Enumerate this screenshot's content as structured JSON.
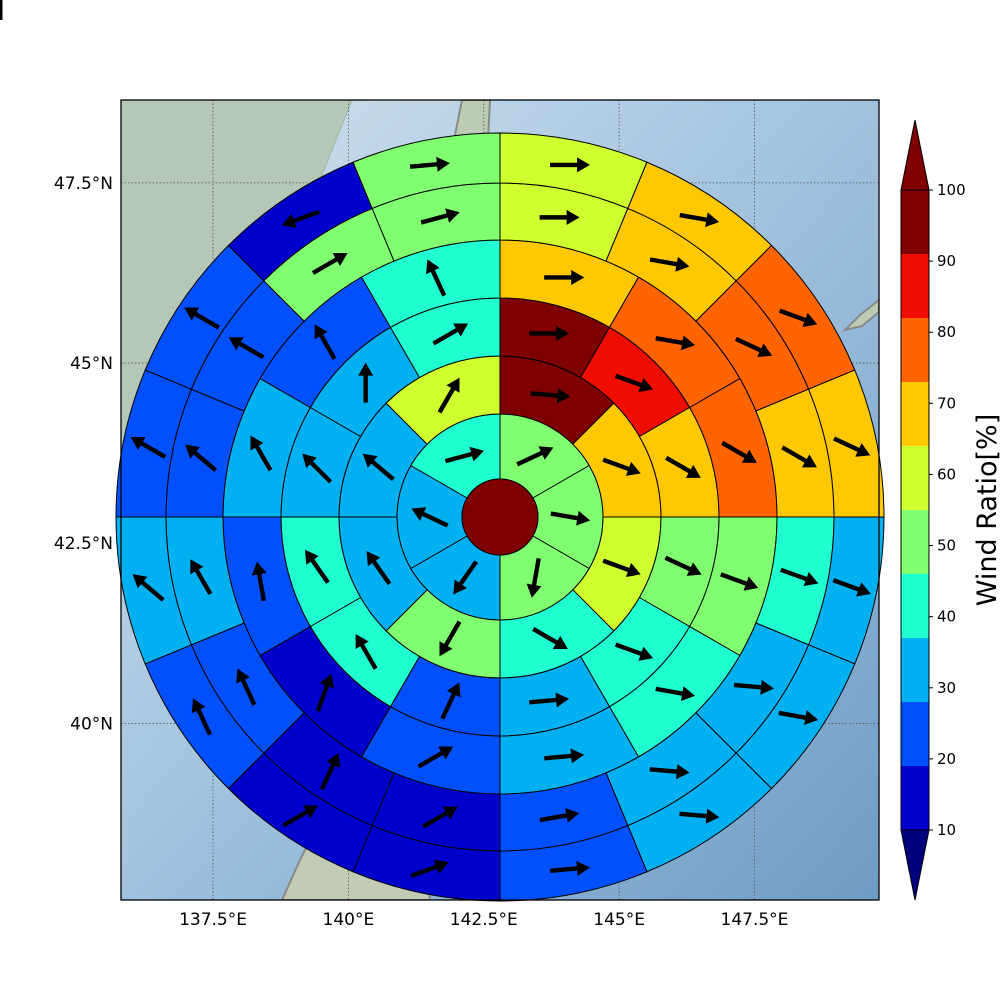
{
  "chart_data": {
    "type": "polar-sector-map",
    "colorbar": {
      "label": "Wind Ratio[%]",
      "ticks": [
        "10",
        "20",
        "30",
        "40",
        "50",
        "60",
        "70",
        "80",
        "90",
        "100"
      ],
      "levels": [
        10,
        20,
        30,
        40,
        50,
        60,
        70,
        80,
        90,
        100
      ],
      "colors": [
        "#0000cd",
        "#0050ff",
        "#00b0f0",
        "#20ffd0",
        "#80ff70",
        "#d0ff30",
        "#ffc800",
        "#ff6400",
        "#f00d00",
        "#7f0000"
      ],
      "under_color": "#00007f",
      "over_color": "#7f0000",
      "extend": "both"
    },
    "x_ticks": [
      "137.5°E",
      "140°E",
      "142.5°E",
      "145°E",
      "147.5°E"
    ],
    "y_ticks": [
      "47.5°N",
      "45°N",
      "42.5°N",
      "40°N"
    ],
    "x_tick_values": [
      137.5,
      140,
      142.5,
      145,
      147.5
    ],
    "y_tick_values": [
      47.5,
      45,
      42.5,
      40
    ],
    "xlim": [
      135.8,
      149.8
    ],
    "ylim": [
      37.55,
      48.65
    ],
    "center": {
      "lon": 142.8,
      "lat": 43.2
    },
    "grid": true,
    "center_value": 100,
    "rings": [
      {
        "sectors": 6,
        "start_bearing": 0,
        "values": [
          55,
          50,
          55,
          35,
          30,
          40
        ],
        "arrows": [
          65,
          100,
          190,
          215,
          295,
          75
        ]
      },
      {
        "sectors": 8,
        "start_bearing": 0,
        "values": [
          100,
          75,
          65,
          45,
          55,
          30,
          30,
          60
        ],
        "arrows": [
          95,
          110,
          110,
          120,
          210,
          325,
          310,
          30
        ]
      },
      {
        "sectors": 12,
        "start_bearing": 0,
        "values": [
          100,
          90,
          75,
          55,
          40,
          30,
          20,
          45,
          40,
          30,
          30,
          45
        ],
        "arrows": [
          90,
          110,
          120,
          115,
          110,
          85,
          25,
          330,
          325,
          315,
          0,
          60
        ]
      },
      {
        "sectors": 12,
        "start_bearing": 0,
        "values": [
          70,
          80,
          85,
          55,
          45,
          35,
          20,
          15,
          25,
          30,
          20,
          40
        ],
        "arrows": [
          90,
          100,
          120,
          110,
          100,
          85,
          60,
          20,
          350,
          330,
          330,
          335
        ]
      },
      {
        "sectors": 16,
        "start_bearing": 0,
        "values": [
          65,
          75,
          80,
          70,
          40,
          35,
          30,
          25,
          15,
          10,
          20,
          30,
          20,
          25,
          50,
          55
        ],
        "arrows": [
          90,
          100,
          115,
          120,
          110,
          95,
          95,
          80,
          60,
          25,
          335,
          330,
          310,
          300,
          60,
          75
        ]
      },
      {
        "sectors": 16,
        "start_bearing": 0,
        "values": [
          65,
          75,
          80,
          70,
          30,
          30,
          35,
          25,
          15,
          15,
          20,
          35,
          20,
          20,
          10,
          50
        ],
        "arrows": [
          90,
          100,
          110,
          115,
          110,
          100,
          95,
          85,
          70,
          60,
          335,
          310,
          300,
          300,
          250,
          85
        ]
      },
      {
        "sectors": 20,
        "start_bearing": 0,
        "values": [
          60,
          70,
          80,
          70,
          35,
          30,
          30,
          30,
          25,
          15,
          15,
          20,
          30,
          20,
          20,
          15,
          10,
          25,
          55,
          55
        ],
        "arrows": [
          85,
          95,
          110,
          115,
          120,
          110,
          100,
          95,
          80,
          65,
          40,
          20,
          340,
          300,
          305,
          300,
          255,
          330,
          60,
          75
        ]
      }
    ]
  }
}
